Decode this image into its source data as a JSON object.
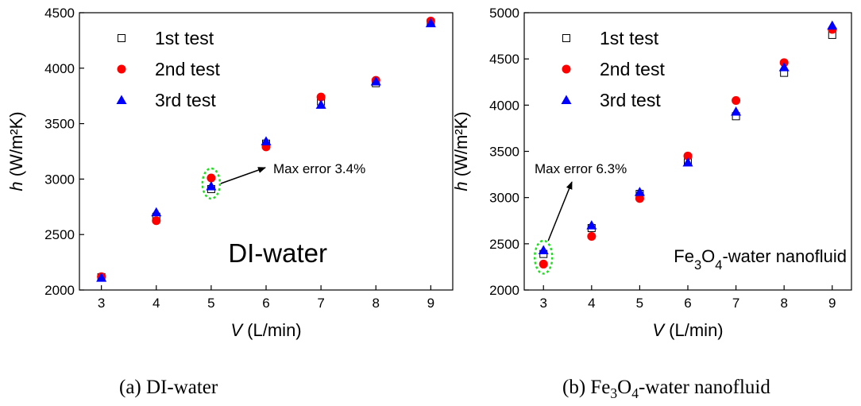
{
  "chart_data": [
    {
      "type": "scatter",
      "caption": "(a) DI-water",
      "panel_label": "DI-water",
      "xlabel_var": "V",
      "xlabel_unit": " (L/min)",
      "ylabel_var": "h",
      "ylabel_unit": "(W/m²K)",
      "xlim": [
        2.6,
        9.4
      ],
      "ylim": [
        2000,
        4500
      ],
      "xticks": [
        3,
        4,
        5,
        6,
        7,
        8,
        9
      ],
      "yticks": [
        2000,
        2500,
        3000,
        3500,
        4000,
        4500
      ],
      "legend_position": "top-left",
      "grid": false,
      "annotation": {
        "text": "Max error 3.4%",
        "at_x": 5
      },
      "series": [
        {
          "name": "1st test",
          "marker": "open-square",
          "color": "#000000",
          "x": [
            3,
            4,
            5,
            6,
            7,
            8,
            9
          ],
          "y": [
            2115,
            2660,
            2910,
            3320,
            3700,
            3865,
            4410
          ]
        },
        {
          "name": "2nd test",
          "marker": "filled-circle",
          "color": "#ff0000",
          "x": [
            3,
            4,
            5,
            6,
            7,
            8,
            9
          ],
          "y": [
            2120,
            2625,
            3010,
            3290,
            3740,
            3890,
            4425
          ]
        },
        {
          "name": "3rd test",
          "marker": "filled-triangle",
          "color": "#0000ff",
          "x": [
            3,
            4,
            5,
            6,
            7,
            8,
            9
          ],
          "y": [
            2110,
            2700,
            2935,
            3340,
            3670,
            3880,
            4405
          ]
        }
      ]
    },
    {
      "type": "scatter",
      "caption": "(b) Fe3O4-water nanofluid",
      "panel_label": "Fe3O4-water nanofluid",
      "xlabel_var": "V",
      "xlabel_unit": " (L/min)",
      "ylabel_var": "h",
      "ylabel_unit": "(W/m²K)",
      "xlim": [
        2.6,
        9.4
      ],
      "ylim": [
        2000,
        5000
      ],
      "xticks": [
        3,
        4,
        5,
        6,
        7,
        8,
        9
      ],
      "yticks": [
        2000,
        2500,
        3000,
        3500,
        4000,
        4500,
        5000
      ],
      "legend_position": "top-left",
      "grid": false,
      "annotation": {
        "text": "Max error 6.3%",
        "at_x": 3
      },
      "series": [
        {
          "name": "1st test",
          "marker": "open-square",
          "color": "#000000",
          "x": [
            3,
            4,
            5,
            6,
            7,
            8,
            9
          ],
          "y": [
            2390,
            2670,
            3040,
            3380,
            3880,
            4350,
            4760
          ]
        },
        {
          "name": "2nd test",
          "marker": "filled-circle",
          "color": "#ff0000",
          "x": [
            3,
            4,
            5,
            6,
            7,
            8,
            9
          ],
          "y": [
            2280,
            2580,
            2990,
            3450,
            4050,
            4460,
            4820
          ]
        },
        {
          "name": "3rd test",
          "marker": "filled-triangle",
          "color": "#0000ff",
          "x": [
            3,
            4,
            5,
            6,
            7,
            8,
            9
          ],
          "y": [
            2430,
            2700,
            3060,
            3380,
            3930,
            4410,
            4860
          ]
        }
      ]
    }
  ],
  "colors": {
    "highlight_ellipse": "#22dd22"
  }
}
